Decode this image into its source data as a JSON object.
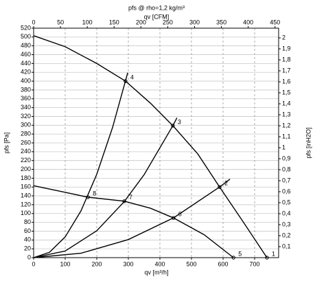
{
  "chart_data": {
    "type": "line",
    "title": "pfs @ rho=1,2 kg/m³",
    "x2label": "qv [CFM]",
    "xlabel": "qv [m³/h]",
    "ylabel": "pfs [Pa]",
    "y2label": "pfs [inH2O]",
    "xlim": [
      0,
      776
    ],
    "xticks": [
      0,
      100,
      200,
      300,
      400,
      500,
      600,
      700
    ],
    "x2lim": [
      0,
      456.7
    ],
    "x2ticks": [
      0,
      50,
      100,
      150,
      200,
      250,
      300,
      350,
      400,
      450
    ],
    "ylim": [
      0,
      520
    ],
    "yticks": [
      0,
      20,
      40,
      60,
      80,
      100,
      120,
      140,
      160,
      180,
      200,
      220,
      240,
      260,
      280,
      300,
      320,
      340,
      360,
      380,
      400,
      420,
      440,
      460,
      480,
      500,
      520
    ],
    "y2lim": [
      0,
      2.088
    ],
    "y2ticks": [
      {
        "value": 0.1,
        "label": "0,1"
      },
      {
        "value": 0.2,
        "label": "0,2"
      },
      {
        "value": 0.3,
        "label": "0,3"
      },
      {
        "value": 0.4,
        "label": "0,4"
      },
      {
        "value": 0.5,
        "label": "0,5"
      },
      {
        "value": 0.6,
        "label": "0,6"
      },
      {
        "value": 0.7,
        "label": "0,7"
      },
      {
        "value": 0.8,
        "label": "0,8"
      },
      {
        "value": 0.9,
        "label": "0,9"
      },
      1,
      {
        "value": 1.1,
        "label": "1,1"
      },
      {
        "value": 1.2,
        "label": "1,2"
      },
      {
        "value": 1.3,
        "label": "1,3"
      },
      {
        "value": 1.4,
        "label": "1,4"
      },
      {
        "value": 1.5,
        "label": "1,5"
      },
      {
        "value": 1.6,
        "label": "1,6"
      },
      {
        "value": 1.7,
        "label": "1,7"
      },
      {
        "value": 1.8,
        "label": "1,8"
      },
      {
        "value": 1.9,
        "label": "1,9"
      },
      2
    ],
    "grid": true,
    "series": [
      {
        "color": "#000000",
        "x": [
          0,
          100,
          200,
          291,
          370,
          441,
          520,
          589,
          660,
          739
        ],
        "values": [
          503,
          478,
          440,
          400,
          350,
          299,
          235,
          160,
          85,
          0
        ]
      },
      {
        "color": "#000000",
        "x": [
          0,
          100,
          172,
          287,
          370,
          443,
          540,
          633
        ],
        "values": [
          163,
          148,
          137,
          128,
          112,
          90,
          52,
          0
        ]
      },
      {
        "color": "#000000",
        "x": [
          0,
          50,
          100,
          150,
          200,
          250,
          298
        ],
        "values": [
          0,
          12,
          47,
          106,
          189,
          295,
          419
        ]
      },
      {
        "color": "#000000",
        "x": [
          0,
          100,
          200,
          287,
          350,
          441,
          454
        ],
        "values": [
          0,
          15,
          61,
          127,
          188,
          299,
          317
        ]
      },
      {
        "color": "#000000",
        "x": [
          0,
          150,
          300,
          443,
          589,
          622
        ],
        "values": [
          0,
          10,
          41,
          90,
          160,
          178
        ]
      }
    ],
    "points": [
      {
        "label": "1",
        "x": 739,
        "y": 0
      },
      {
        "label": "2",
        "x": 589,
        "y": 160
      },
      {
        "label": "3",
        "x": 441,
        "y": 299
      },
      {
        "label": "4",
        "x": 291,
        "y": 400
      },
      {
        "label": "5",
        "x": 633,
        "y": 0
      },
      {
        "label": "6",
        "x": 443,
        "y": 90
      },
      {
        "label": "7",
        "x": 287,
        "y": 128
      },
      {
        "label": "8",
        "x": 172,
        "y": 137
      }
    ]
  }
}
